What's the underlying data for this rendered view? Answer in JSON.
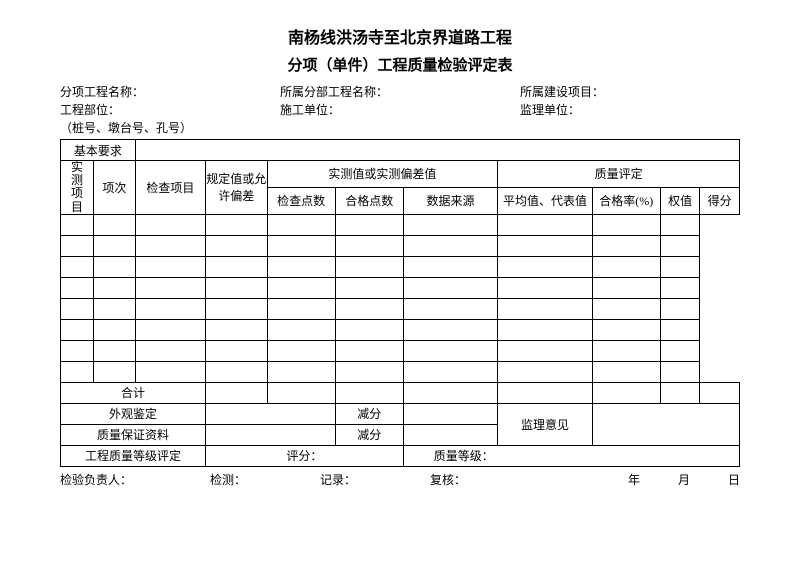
{
  "title1": "南杨线洪汤寺至北京界道路工程",
  "title2": "分项（单件）工程质量检验评定表",
  "meta": {
    "row1": {
      "c1": "分项工程名称：",
      "c2": "所属分部工程名称：",
      "c3": "所属建设项目："
    },
    "row2": {
      "c1": "工程部位：",
      "c2": "施工单位：",
      "c3": "监理单位："
    },
    "row3": {
      "c1": "（桩号、墩台号、孔号）"
    }
  },
  "table": {
    "basicReq": "基本要求",
    "itemNo": "项次",
    "inspectItem": "检查项目",
    "specOrTol": "规定值或允许偏差",
    "measuredGroup": "实测值或实测偏差值",
    "checkPoints": "检查点数",
    "passPoints": "合格点数",
    "dataSource": "数据来源",
    "qualityGroup": "质量评定",
    "avgRep": "平均值、代表值",
    "passRate": "合格率(%)",
    "weight": "权值",
    "score": "得分",
    "measuredItemsV": [
      "实",
      "测",
      "项",
      "目"
    ],
    "total": "合计",
    "visual": "外观鉴定",
    "deduct": "减分",
    "qaData": "质量保证资料",
    "supOpinion": "监理意见",
    "gradeEval": "工程质量等级评定",
    "evalScore": "评分：",
    "qualityGrade": "质量等级："
  },
  "footer": {
    "inspector": "检验负责人：",
    "detect": "检测：",
    "record": "记录：",
    "review": "复核：",
    "year": "年",
    "month": "月",
    "day": "日"
  },
  "style": {
    "emptyRows": 8
  }
}
